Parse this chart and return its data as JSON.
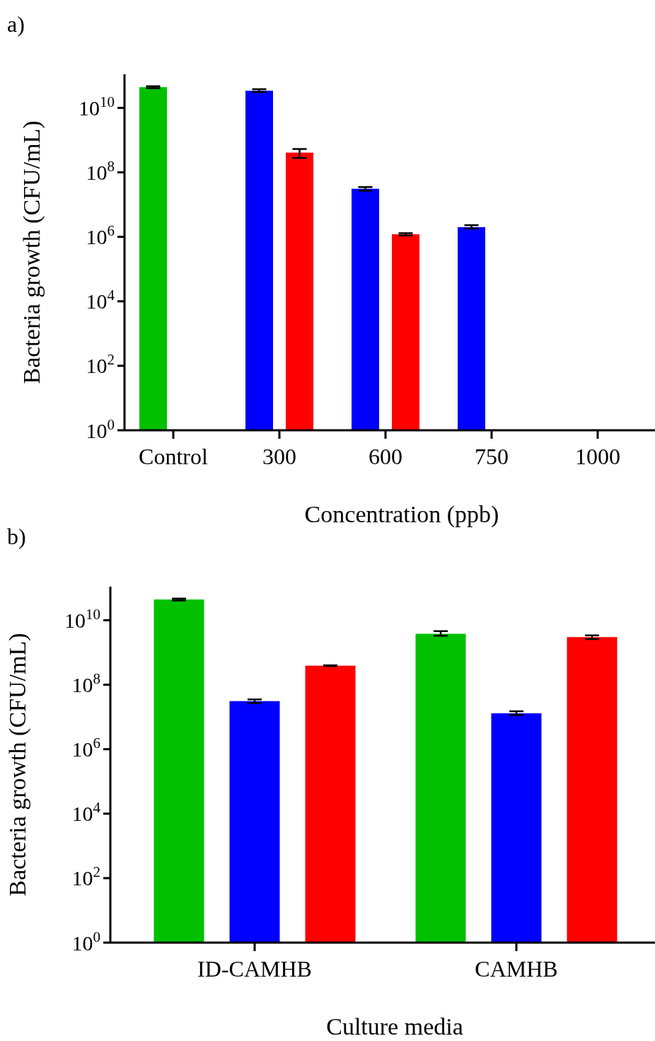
{
  "chart_data": [
    {
      "type": "bar",
      "title": "a)",
      "xlabel": "Concentration (ppb)",
      "ylabel": "Bacteria growth (CFU/mL)",
      "categories": [
        "Control",
        "300",
        "600",
        "750",
        "1000"
      ],
      "log": true,
      "grid": false,
      "ylim": [
        1,
        110000000000
      ],
      "yticks": [
        {
          "value": 1,
          "label": "10$^{0}$"
        },
        {
          "value": 100,
          "label": "10$^{2}$"
        },
        {
          "value": 10000,
          "label": "10$^{4}$"
        },
        {
          "value": 1000000,
          "label": "10$^{6}$"
        },
        {
          "value": 100000000,
          "label": "10$^{8}$"
        },
        {
          "value": 10000000000,
          "label": "10$^{10}$"
        }
      ],
      "series": [
        {
          "color": "#00c000",
          "values": [
            44000000000,
            null,
            null,
            null,
            null
          ],
          "errors": [
            [
              41000000000,
              47000000000
            ],
            null,
            null,
            null,
            null
          ]
        },
        {
          "color": "#0000ff",
          "values": [
            null,
            34000000000,
            31000000,
            2000000,
            null
          ],
          "errors": [
            null,
            [
              31000000000,
              38000000000
            ],
            [
              27000000,
              35000000
            ],
            [
              1800000,
              2300000
            ],
            null
          ]
        },
        {
          "color": "#ff0000",
          "values": [
            null,
            410000000,
            1200000,
            null,
            null
          ],
          "errors": [
            null,
            [
              280000000,
              530000000
            ],
            [
              1100000,
              1300000
            ],
            null,
            null
          ]
        }
      ]
    },
    {
      "type": "bar",
      "title": "b)",
      "xlabel": "Culture media",
      "ylabel": "Bacteria growth (CFU/mL)",
      "categories": [
        "ID-CAMHB",
        "CAMHB"
      ],
      "log": true,
      "grid": false,
      "ylim": [
        1,
        110000000000
      ],
      "yticks": [
        {
          "value": 1,
          "label": "10$^{0}$"
        },
        {
          "value": 100,
          "label": "10$^{2}$"
        },
        {
          "value": 10000,
          "label": "10$^{4}$"
        },
        {
          "value": 1000000,
          "label": "10$^{6}$"
        },
        {
          "value": 100000000,
          "label": "10$^{8}$"
        },
        {
          "value": 10000000000,
          "label": "10$^{10}$"
        }
      ],
      "series": [
        {
          "color": "#00c000",
          "values": [
            44000000000,
            3800000000
          ],
          "errors": [
            [
              41000000000,
              47000000000
            ],
            [
              3300000000,
              4600000000
            ]
          ]
        },
        {
          "color": "#0000ff",
          "values": [
            31000000,
            13000000
          ],
          "errors": [
            [
              27000000,
              35000000
            ],
            [
              11500000,
              15000000
            ]
          ]
        },
        {
          "color": "#ff0000",
          "values": [
            390000000,
            3000000000
          ],
          "errors": [
            [
              380000000,
              400000000
            ],
            [
              2600000000,
              3400000000
            ]
          ]
        }
      ]
    }
  ]
}
